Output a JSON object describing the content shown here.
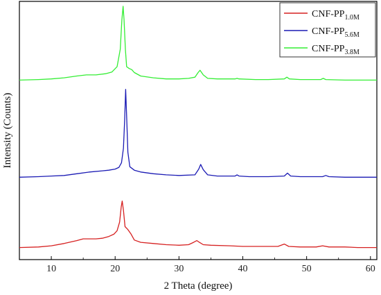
{
  "chart_data": {
    "type": "line",
    "title": "",
    "xlabel": "2 Theta (degree)",
    "ylabel": "Intensity (Counts)",
    "xlim": [
      5,
      61
    ],
    "xticks": [
      10,
      20,
      30,
      40,
      50,
      60
    ],
    "yticks_shown": false,
    "grid": false,
    "legend": "top-right",
    "series": [
      {
        "name": "CNF-PP",
        "subscript": "1.0M",
        "color": "#d62020",
        "x": [
          5,
          8,
          10,
          12,
          14,
          15,
          16,
          17,
          18,
          19,
          19.8,
          20.3,
          20.7,
          20.95,
          21.1,
          21.3,
          21.55,
          22,
          22.5,
          23,
          24,
          26,
          28,
          30,
          31.5,
          32.3,
          32.8,
          33.2,
          33.8,
          35,
          38,
          40,
          43,
          45.5,
          46.5,
          47.2,
          49,
          51.5,
          52.5,
          53.5,
          56,
          58,
          61
        ],
        "y": [
          4,
          5,
          7,
          11,
          16,
          19,
          19,
          19,
          20,
          23,
          27,
          33,
          48,
          74,
          84,
          68,
          40,
          35,
          27,
          17,
          13,
          11,
          9,
          8,
          9,
          13,
          16,
          13,
          9,
          8,
          7,
          6,
          6,
          6,
          10,
          6,
          5,
          5,
          7,
          5,
          5,
          4,
          4
        ]
      },
      {
        "name": "CNF-PP",
        "subscript": "5.6M",
        "color": "#1a1ab4",
        "x": [
          5,
          8,
          10,
          12,
          14,
          16,
          18,
          19,
          20,
          20.6,
          21,
          21.3,
          21.5,
          21.65,
          21.8,
          22,
          22.3,
          23,
          24,
          26,
          28,
          30,
          32.5,
          33.1,
          33.4,
          33.8,
          34.5,
          36,
          38.8,
          39.1,
          39.4,
          41,
          44,
          46.5,
          47,
          47.5,
          49,
          52.5,
          53,
          53.5,
          56,
          59,
          61
        ],
        "y": [
          125,
          126,
          127,
          128,
          131,
          134,
          136,
          137,
          139,
          142,
          150,
          175,
          225,
          276,
          230,
          168,
          143,
          137,
          134,
          131,
          129,
          128,
          129,
          139,
          147,
          138,
          129,
          127,
          127,
          129,
          127,
          126,
          126,
          127,
          132,
          127,
          126,
          126,
          128,
          126,
          125,
          125,
          125
        ]
      },
      {
        "name": "CNF-PP",
        "subscript": "3.8M",
        "color": "#33ee33",
        "x": [
          5,
          8,
          10,
          12,
          14,
          15.5,
          17,
          18.5,
          19.5,
          20.3,
          20.8,
          21.05,
          21.25,
          21.4,
          21.6,
          21.8,
          22.2,
          22.6,
          23,
          24,
          26,
          28,
          30,
          31.5,
          32.5,
          33,
          33.3,
          33.8,
          34.5,
          36,
          38.8,
          39.1,
          39.4,
          42,
          44,
          46.5,
          46.9,
          47.3,
          49,
          52.2,
          52.6,
          53,
          56,
          61
        ],
        "y": [
          292,
          293,
          294,
          296,
          299,
          301,
          301,
          303,
          306,
          315,
          345,
          395,
          419,
          395,
          345,
          315,
          312,
          310,
          305,
          299,
          296,
          294,
          294,
          295,
          297,
          305,
          309,
          301,
          295,
          294,
          294,
          295,
          294,
          293,
          293,
          294,
          297,
          294,
          293,
          293,
          295,
          293,
          292,
          292
        ]
      }
    ]
  }
}
